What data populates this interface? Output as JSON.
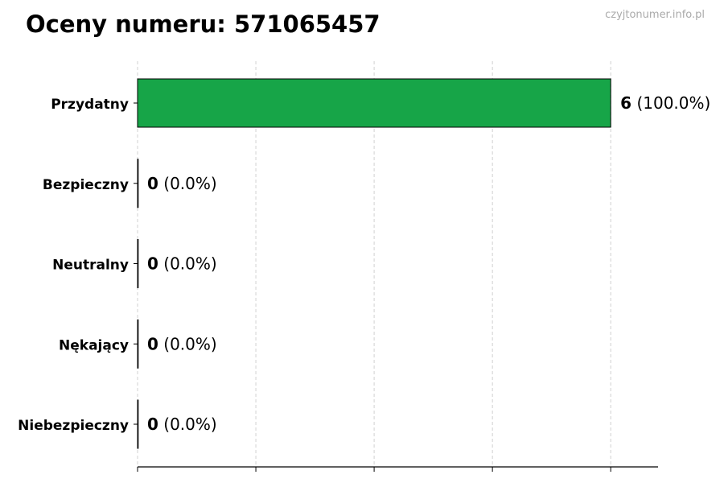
{
  "chart_data": {
    "type": "bar",
    "orientation": "horizontal",
    "title": "Oceny numeru: 571065457",
    "watermark": "czyjtonumer.info.pl",
    "categories": [
      "Przydatny",
      "Bezpieczny",
      "Neutralny",
      "Nękający",
      "Niebezpieczny"
    ],
    "values": [
      6,
      0,
      0,
      0,
      0
    ],
    "percent_labels": [
      "(100.0%)",
      "(0.0%)",
      "(0.0%)",
      "(0.0%)",
      "(0.0%)"
    ],
    "xlim": [
      0,
      6.6
    ],
    "xticks": [
      0,
      1.5,
      3,
      4.5,
      6
    ],
    "xtick_labels_shown": false,
    "grid": "vertical dashed",
    "bar_color": "#17a548",
    "bar_edge_color": "#000000",
    "xlabel": "",
    "ylabel": ""
  }
}
